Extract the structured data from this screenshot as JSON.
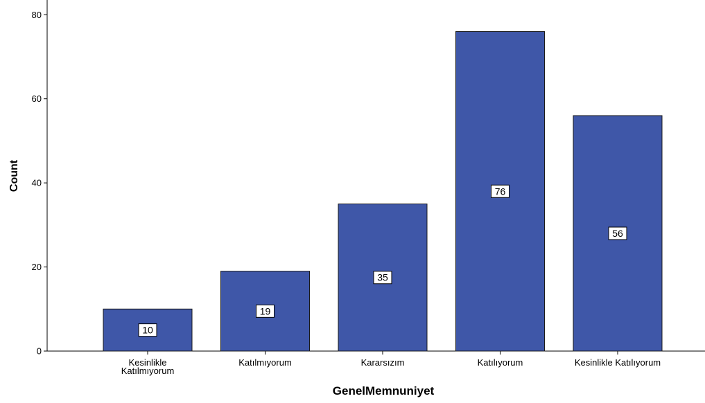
{
  "chart_data": {
    "type": "bar",
    "categories": [
      [
        "Kesinlikle",
        "Katılmıyorum"
      ],
      [
        "Katılmıyorum"
      ],
      [
        "Kararsızım"
      ],
      [
        "Katılıyorum"
      ],
      [
        "Kesinlikle Katılıyorum"
      ]
    ],
    "values": [
      10,
      19,
      35,
      76,
      56
    ],
    "xlabel": "GenelMemnuniyet",
    "ylabel": "Count",
    "yticks": [
      0,
      20,
      40,
      60,
      80
    ],
    "ylim": [
      0,
      80
    ],
    "grid": false,
    "legend": "none",
    "data_labels": true
  },
  "colors": {
    "bar_fill": "#3F57A8",
    "bar_stroke": "#1a1a1a",
    "axis": "#000000",
    "label_box": "#ffffff"
  }
}
